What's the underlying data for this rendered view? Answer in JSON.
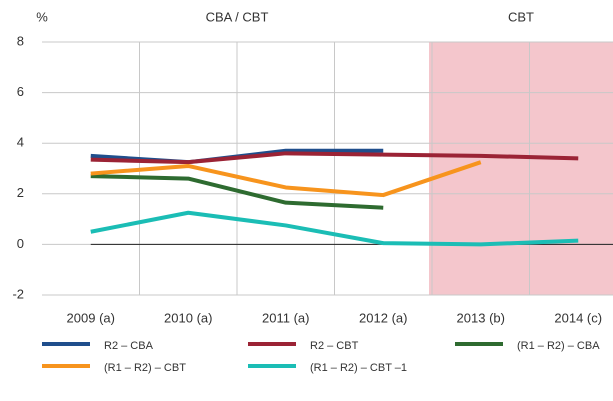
{
  "chart_data": {
    "type": "line",
    "y_unit": "%",
    "annotations": [
      {
        "text": "CBA / CBT"
      },
      {
        "text": "CBT",
        "shaded_from": "2013 (b)",
        "color": "#f4c6cc"
      }
    ],
    "categories": [
      "2009 (a)",
      "2010 (a)",
      "2011 (a)",
      "2012 (a)",
      "2013 (b)",
      "2014 (c)"
    ],
    "series": [
      {
        "name": "R2 – CBA",
        "color": "#1f4e8c",
        "values": [
          3.5,
          3.25,
          3.7,
          3.7,
          null,
          null
        ]
      },
      {
        "name": "R2 – CBT",
        "color": "#9b2335",
        "values": [
          3.35,
          3.25,
          3.6,
          3.55,
          3.5,
          3.4
        ]
      },
      {
        "name": "(R1 – R2) – CBA",
        "color": "#2e6b30",
        "values": [
          2.7,
          2.6,
          1.65,
          1.45,
          null,
          null
        ]
      },
      {
        "name": "(R1 – R2) – CBT",
        "color": "#f7941d",
        "values": [
          2.8,
          3.1,
          2.25,
          1.95,
          3.25,
          null
        ]
      },
      {
        "name": "(R1 – R2) – CBT –1",
        "color": "#1bbdb5",
        "values": [
          0.5,
          1.25,
          0.75,
          0.05,
          0,
          0.15
        ]
      }
    ],
    "ylim": [
      -2,
      8
    ],
    "yticks": [
      -2,
      0,
      2,
      4,
      6,
      8
    ],
    "grid": true
  }
}
